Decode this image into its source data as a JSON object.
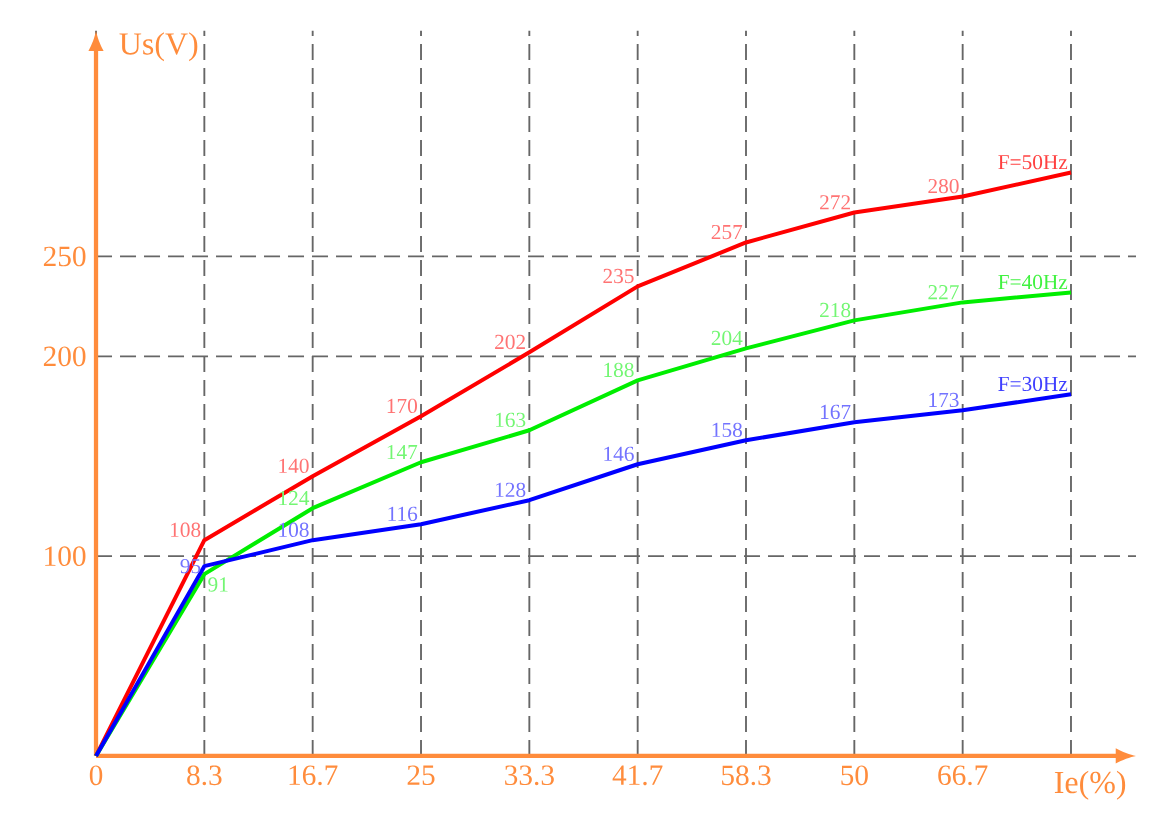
{
  "chart_data": {
    "type": "line",
    "xlabel": "Ie(%)",
    "ylabel": "Us(V)",
    "categories": [
      "0",
      "8.3",
      "16.7",
      "25",
      "33.3",
      "41.7",
      "58.3",
      "50",
      "66.7",
      null
    ],
    "ylim": [
      0,
      363
    ],
    "yticks": [
      100,
      200,
      250
    ],
    "grid": true,
    "legend": false,
    "marker": "none",
    "line_style": "solid",
    "series": [
      {
        "name": "F=50Hz",
        "color": "#ff0000",
        "values": [
          0,
          108,
          140,
          170,
          202,
          235,
          257,
          272,
          280,
          292
        ],
        "value_labels": [
          null,
          "108",
          "140",
          "170",
          "202",
          "235",
          "257",
          "272",
          "280",
          null
        ]
      },
      {
        "name": "F=40Hz",
        "color": "#00ee00",
        "values": [
          0,
          91,
          124,
          147,
          163,
          188,
          204,
          218,
          227,
          232
        ],
        "value_labels": [
          null,
          "91",
          "124",
          "147",
          "163",
          "188",
          "204",
          "218",
          "227",
          null
        ]
      },
      {
        "name": "F=30Hz",
        "color": "#0000ff",
        "values": [
          0,
          95,
          108,
          116,
          128,
          146,
          158,
          167,
          173,
          181
        ],
        "value_labels": [
          null,
          "95",
          "108",
          "116",
          "128",
          "146",
          "158",
          "167",
          "173",
          null
        ]
      }
    ]
  }
}
